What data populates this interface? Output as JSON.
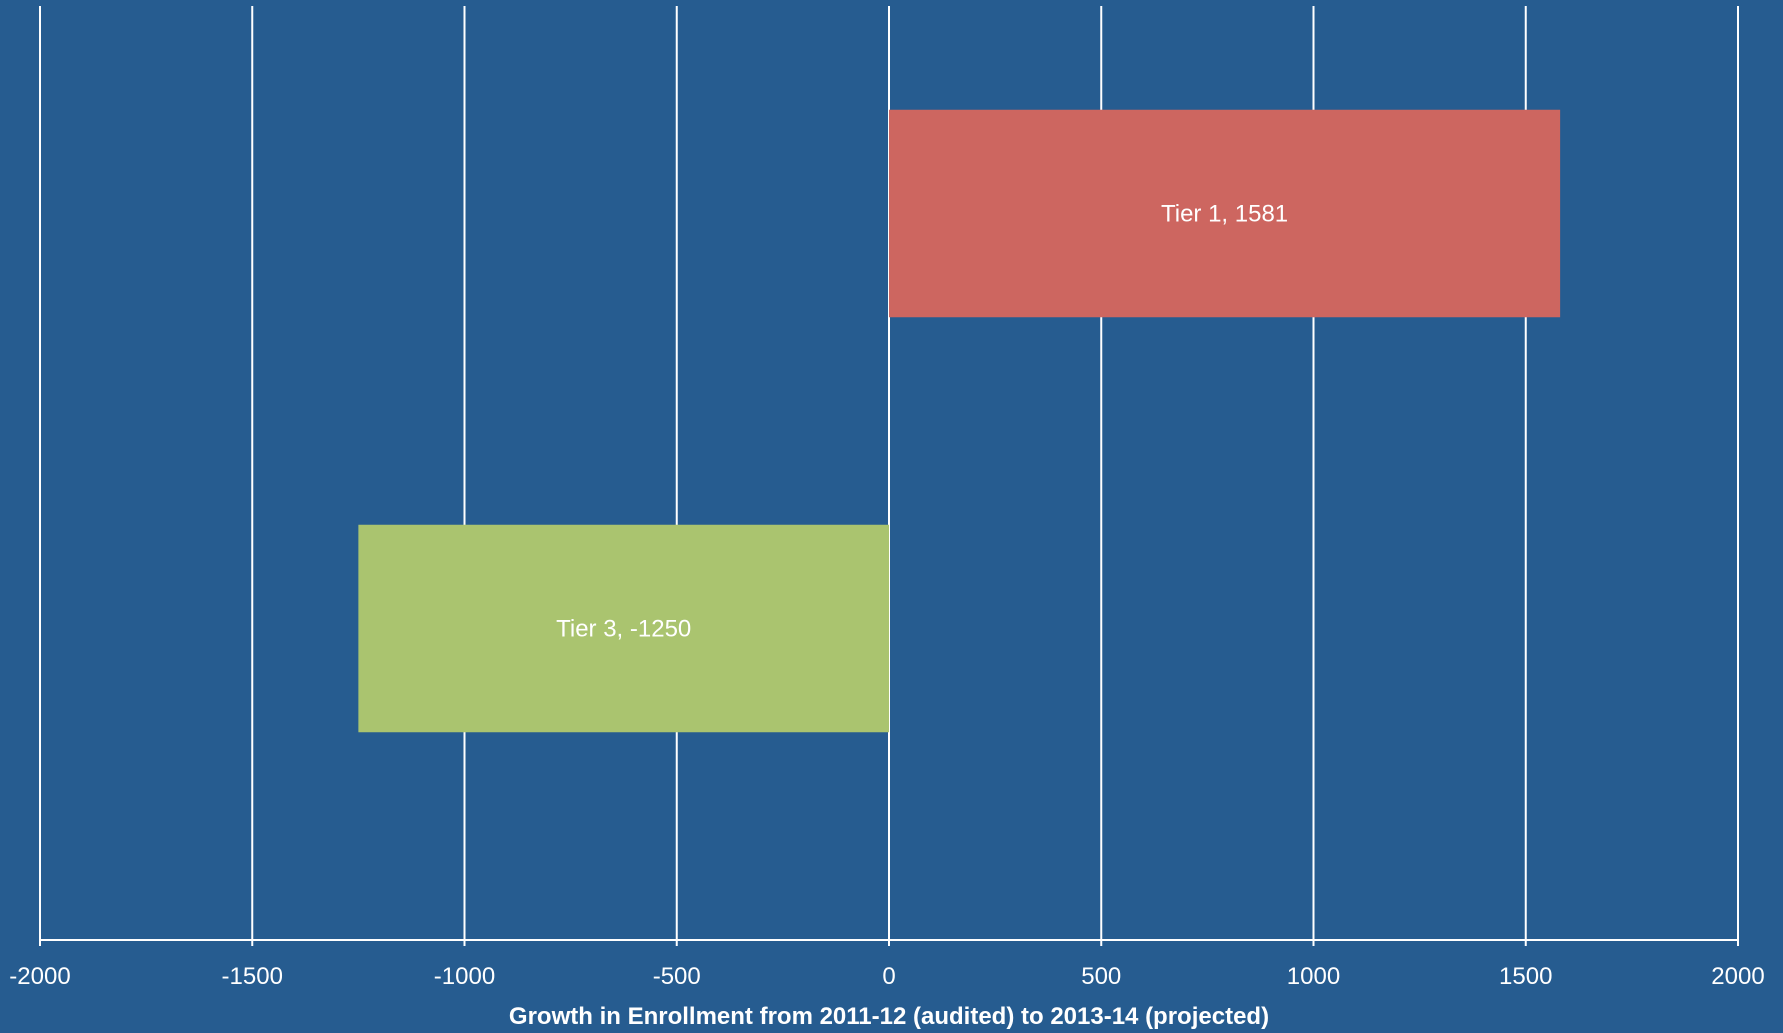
{
  "chart_data": {
    "type": "bar",
    "orientation": "horizontal",
    "categories": [
      "Tier 1",
      "Tier 3"
    ],
    "values": [
      1581,
      -1250
    ],
    "bar_colors": [
      "#CD6660",
      "#AAC46F"
    ],
    "data_labels": [
      "Tier 1, 1581",
      "Tier 3, -1250"
    ],
    "xlabel": "Growth in Enrollment from 2011-12 (audited) to 2013-14 (projected)",
    "ylabel": "",
    "title": "",
    "xlim": [
      -2000,
      2000
    ],
    "xticks": [
      -2000,
      -1500,
      -1000,
      -500,
      0,
      500,
      1000,
      1500,
      2000
    ],
    "xtick_labels": [
      "-2000",
      "-1500",
      "-1000",
      "-500",
      "0",
      "500",
      "1000",
      "1500",
      "2000"
    ],
    "grid": "vertical",
    "legend": "none",
    "background_color": "#265C90",
    "gridline_color": "#FFFFFF",
    "text_color": "#FFFFFF"
  }
}
